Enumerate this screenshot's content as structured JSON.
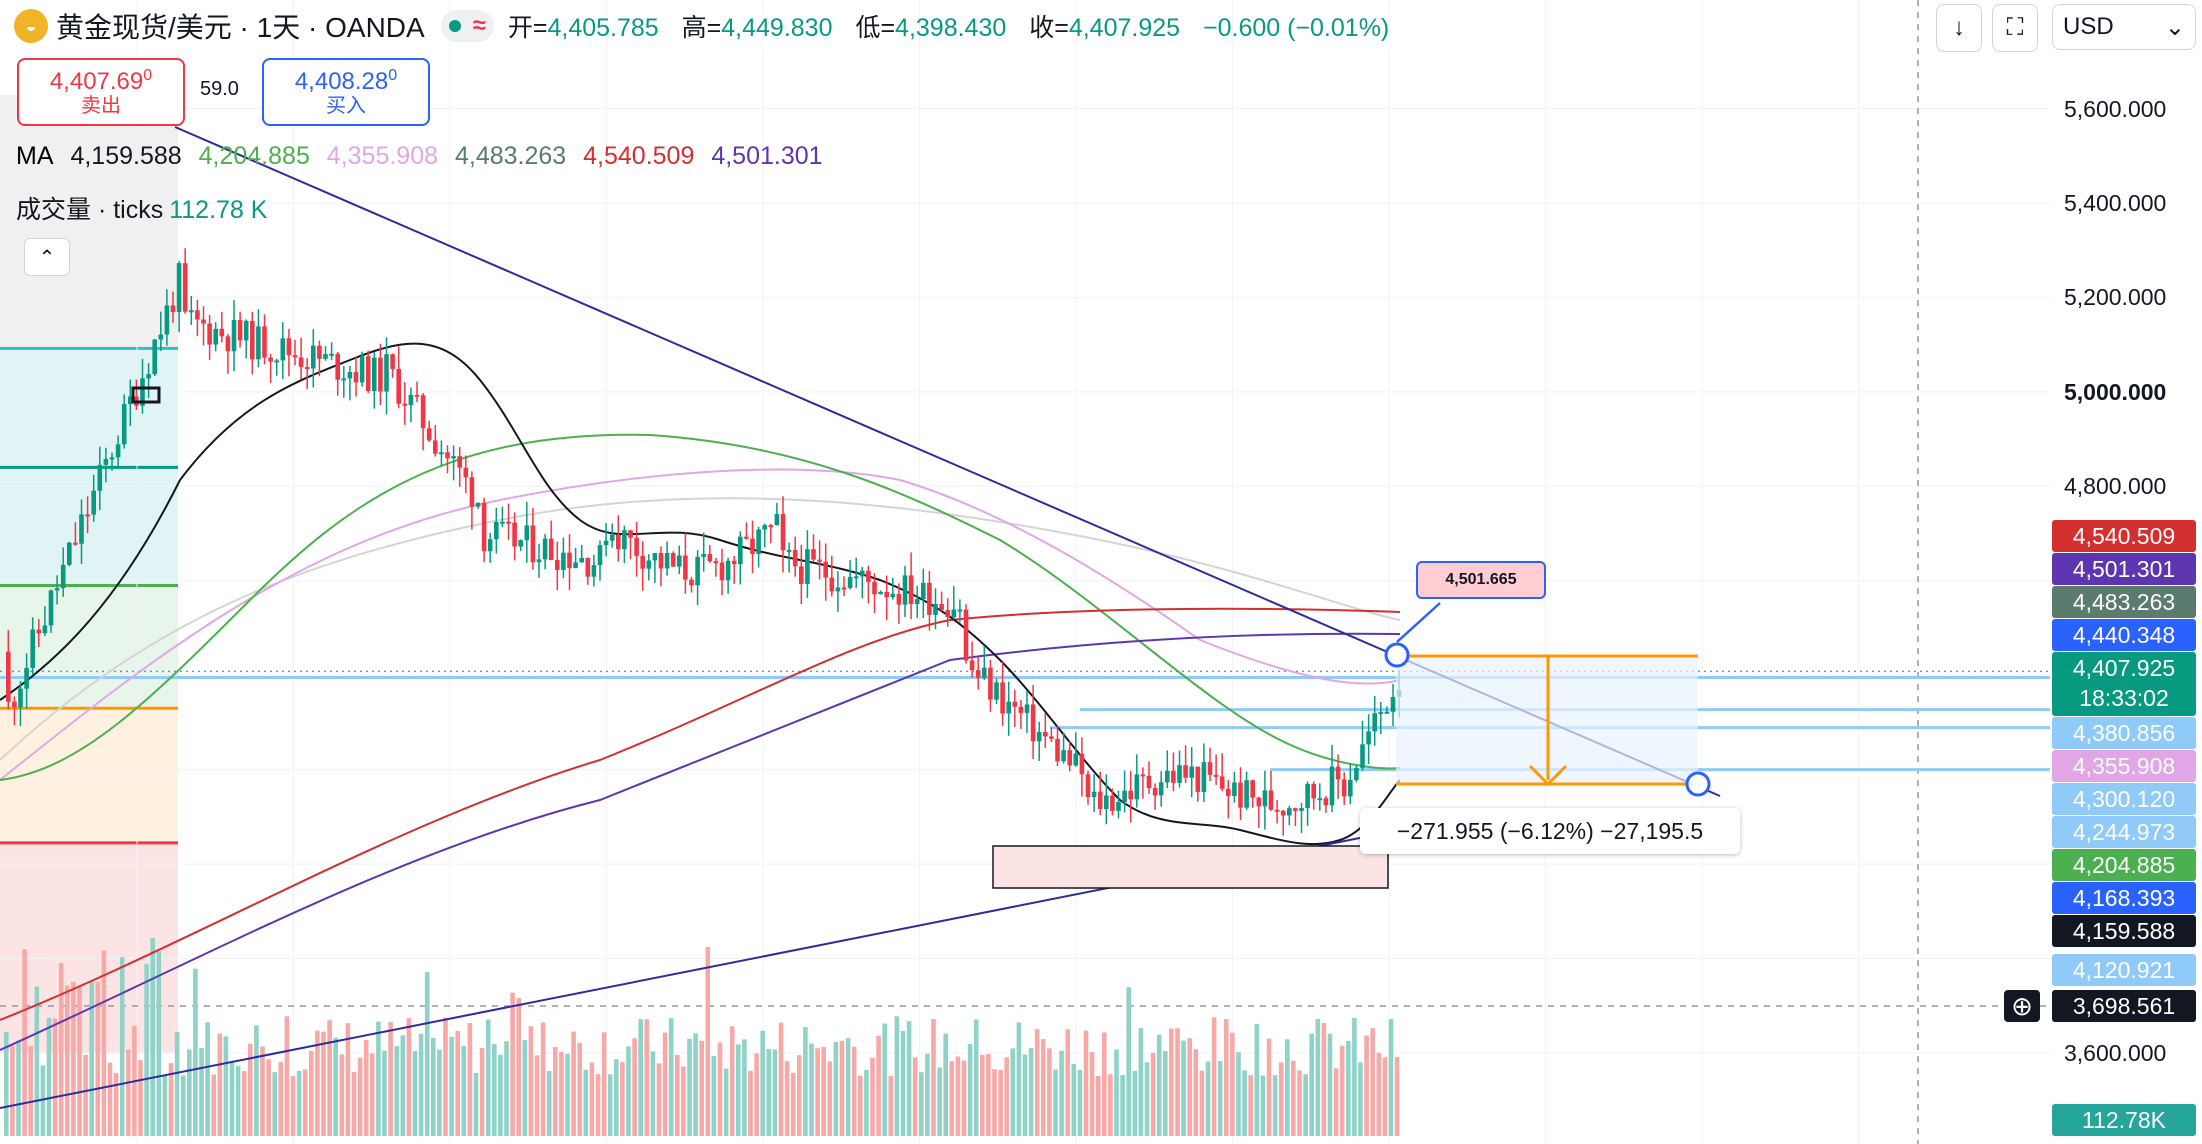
{
  "header": {
    "symbol_title": "黄金现货/美元 · 1天 · OANDA",
    "ohlc": [
      {
        "label": "开=",
        "value": "4,405.785"
      },
      {
        "label": "高=",
        "value": "4,449.830"
      },
      {
        "label": "低=",
        "value": "4,398.430"
      },
      {
        "label": "收=",
        "value": "4,407.925"
      }
    ],
    "change": "−0.600 (−0.01%)"
  },
  "trade": {
    "sell_price": "4,407.69",
    "sell_sup": "0",
    "sell_label": "卖出",
    "spread": "59.0",
    "buy_price": "4,408.28",
    "buy_sup": "0",
    "buy_label": "买入"
  },
  "indicators": {
    "ma_label": "MA",
    "ma_values": [
      {
        "value": "4,159.588",
        "color": "#131722"
      },
      {
        "value": "4,204.885",
        "color": "#4caf50"
      },
      {
        "value": "4,355.908",
        "color": "#e1a6e6"
      },
      {
        "value": "4,483.263",
        "color": "#5b7b6e"
      },
      {
        "value": "4,540.509",
        "color": "#d32f2f"
      },
      {
        "value": "4,501.301",
        "color": "#5e35b1"
      }
    ],
    "volume_label": "成交量 · ticks",
    "volume_value": "112.78 K"
  },
  "toolbar": {
    "download_icon": "↓",
    "screenshot_icon": "⛶",
    "currency": "USD",
    "currency_caret": "⌄"
  },
  "price_axis": {
    "ticks": [
      {
        "value": "5,600.000",
        "price": 5600,
        "bold": false
      },
      {
        "value": "5,400.000",
        "price": 5400,
        "bold": false
      },
      {
        "value": "5,200.000",
        "price": 5200,
        "bold": false
      },
      {
        "value": "5,000.000",
        "price": 5000,
        "bold": true
      },
      {
        "value": "4,800.000",
        "price": 4800,
        "bold": false
      },
      {
        "value": "3,600.000",
        "price": 3600,
        "bold": false
      }
    ],
    "labels": [
      {
        "value": "4,540.509",
        "price": 4540.509,
        "bg": "#d32f2f"
      },
      {
        "value": "4,501.301",
        "price": 4501.301,
        "bg": "#5e35b1"
      },
      {
        "value": "4,483.263",
        "price": 4483.263,
        "bg": "#5b7b6e"
      },
      {
        "value": "4,440.348",
        "price": 4440.348,
        "bg": "#2962ff"
      },
      {
        "value": "4,380.856",
        "price": 4380.856,
        "bg": "#90caf9"
      },
      {
        "value": "4,355.908",
        "price": 4355.908,
        "bg": "#e1a6e6"
      },
      {
        "value": "4,300.120",
        "price": 4300.12,
        "bg": "#90caf9"
      },
      {
        "value": "4,244.973",
        "price": 4244.973,
        "bg": "#90caf9"
      },
      {
        "value": "4,204.885",
        "price": 4204.885,
        "bg": "#4caf50"
      },
      {
        "value": "4,168.393",
        "price": 4168.393,
        "bg": "#2962ff"
      },
      {
        "value": "4,159.588",
        "price": 4159.588,
        "bg": "#131722"
      },
      {
        "value": "4,120.921",
        "price": 4120.921,
        "bg": "#90caf9"
      }
    ],
    "last_price": "4,407.925",
    "countdown": "18:33:02",
    "last_price_bg": "#089981",
    "crosshair_price": "3,698.561",
    "plus_icon": "⊕",
    "volume_label": "112.78K"
  },
  "annotations": {
    "tooltip_price": "4,501.665",
    "measure_text": "−271.955 (−6.12%) −27,195.5"
  },
  "chart_data": {
    "type": "candlestick",
    "title": "黄金现货/美元 · 1天 · OANDA",
    "ylim": [
      3600,
      5600
    ],
    "series": [
      {
        "name": "MA",
        "value": 4159.588,
        "color": "#131722"
      },
      {
        "name": "MA",
        "value": 4204.885,
        "color": "#4caf50"
      },
      {
        "name": "MA",
        "value": 4355.908,
        "color": "#e1a6e6"
      },
      {
        "name": "MA",
        "value": 4483.263,
        "color": "#5b7b6e"
      },
      {
        "name": "MA",
        "value": 4540.509,
        "color": "#d32f2f"
      },
      {
        "name": "MA",
        "value": 4501.301,
        "color": "#5e35b1"
      }
    ],
    "last": {
      "open": 4405.785,
      "high": 4449.83,
      "low": 4398.43,
      "close": 4407.925
    },
    "colors": {
      "up": "#089981",
      "down": "#f23645",
      "vol_up": "#8fd3c8",
      "vol_down": "#f7a9a7"
    }
  }
}
